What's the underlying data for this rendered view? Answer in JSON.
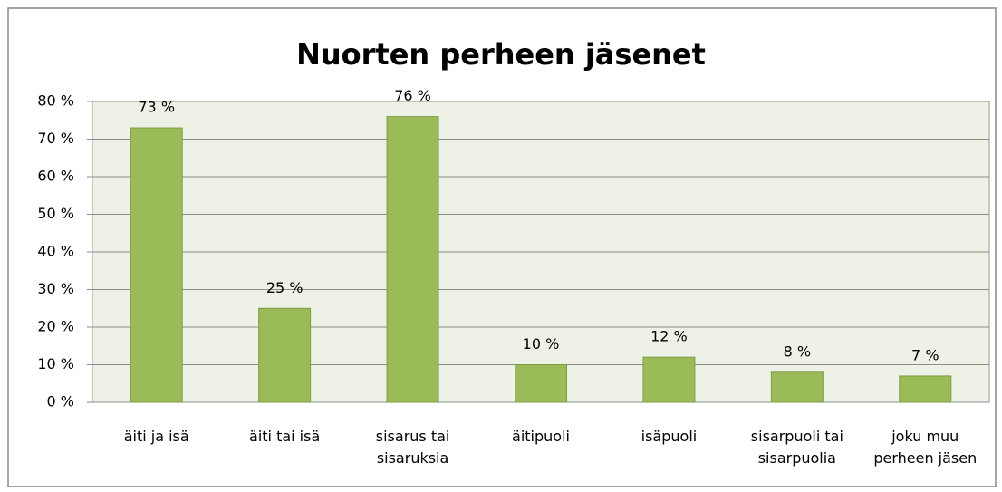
{
  "chart_data": {
    "type": "bar",
    "title": "Nuorten perheen jäsenet",
    "categories": [
      "äiti ja isä",
      "äiti tai isä",
      "sisarus tai sisaruksia",
      "äitipuoli",
      "isäpuoli",
      "sisarpuoli tai sisarpuolia",
      "joku muu perheen jäsen"
    ],
    "values": [
      73,
      25,
      76,
      10,
      12,
      8,
      7
    ],
    "value_labels": [
      "73 %",
      "25 %",
      "76 %",
      "10 %",
      "12 %",
      "8 %",
      "7 %"
    ],
    "color": "#9bbb59",
    "ylim": [
      0,
      80
    ],
    "yticks": [
      {
        "value": 0,
        "label": "0 %"
      },
      {
        "value": 10,
        "label": "10 %"
      },
      {
        "value": 20,
        "label": "20 %"
      },
      {
        "value": 30,
        "label": "30 %"
      },
      {
        "value": 40,
        "label": "40 %"
      },
      {
        "value": 50,
        "label": "50 %"
      },
      {
        "value": 60,
        "label": "60 %"
      },
      {
        "value": 70,
        "label": "70 %"
      },
      {
        "value": 80,
        "label": "80 %"
      }
    ],
    "grid": true
  }
}
